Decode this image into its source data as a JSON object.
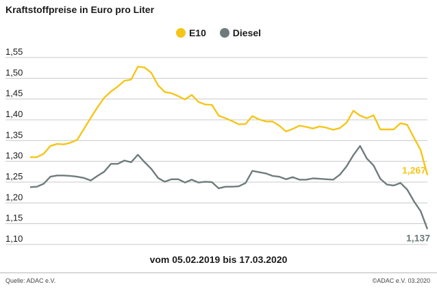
{
  "title": "Kraftstoffpreise in Euro pro Liter",
  "subtitle": "vom 05.02.2019 bis 17.03.2020",
  "footer": {
    "source": "Quelle: ADAC e.V.",
    "copyright": "©ADAC e.V.  03.2020"
  },
  "colors": {
    "e10": "#f5c518",
    "diesel": "#6e7b7c",
    "grid": "#c8c8c8"
  },
  "chart_data": {
    "type": "line",
    "title": "Kraftstoffpreise in Euro pro Liter",
    "xlabel": "vom 05.02.2019 bis 17.03.2020",
    "ylabel": "",
    "ylim": [
      1.1,
      1.55
    ],
    "yticks": [
      "1,10",
      "1,15",
      "1,20",
      "1,25",
      "1,30",
      "1,35",
      "1,40",
      "1,45",
      "1,50",
      "1,55"
    ],
    "grid": true,
    "legend_position": "top-center",
    "series": [
      {
        "name": "E10",
        "end_label": "1,267",
        "values": [
          1.31,
          1.31,
          1.318,
          1.337,
          1.342,
          1.341,
          1.345,
          1.352,
          1.378,
          1.405,
          1.43,
          1.453,
          1.468,
          1.48,
          1.494,
          1.497,
          1.528,
          1.526,
          1.513,
          1.483,
          1.467,
          1.464,
          1.457,
          1.449,
          1.46,
          1.443,
          1.437,
          1.436,
          1.41,
          1.404,
          1.397,
          1.389,
          1.39,
          1.409,
          1.401,
          1.396,
          1.396,
          1.386,
          1.372,
          1.378,
          1.386,
          1.383,
          1.379,
          1.384,
          1.381,
          1.376,
          1.38,
          1.393,
          1.422,
          1.41,
          1.404,
          1.411,
          1.377,
          1.377,
          1.377,
          1.392,
          1.388,
          1.357,
          1.327,
          1.267
        ]
      },
      {
        "name": "Diesel",
        "end_label": "1,137",
        "values": [
          1.238,
          1.239,
          1.246,
          1.263,
          1.266,
          1.266,
          1.265,
          1.263,
          1.26,
          1.254,
          1.265,
          1.275,
          1.294,
          1.294,
          1.302,
          1.298,
          1.316,
          1.298,
          1.282,
          1.26,
          1.251,
          1.257,
          1.257,
          1.249,
          1.256,
          1.249,
          1.251,
          1.25,
          1.235,
          1.239,
          1.239,
          1.24,
          1.248,
          1.277,
          1.274,
          1.271,
          1.265,
          1.263,
          1.257,
          1.262,
          1.256,
          1.256,
          1.259,
          1.258,
          1.257,
          1.256,
          1.268,
          1.288,
          1.315,
          1.337,
          1.307,
          1.29,
          1.258,
          1.244,
          1.242,
          1.248,
          1.232,
          1.204,
          1.18,
          1.137
        ]
      }
    ]
  }
}
